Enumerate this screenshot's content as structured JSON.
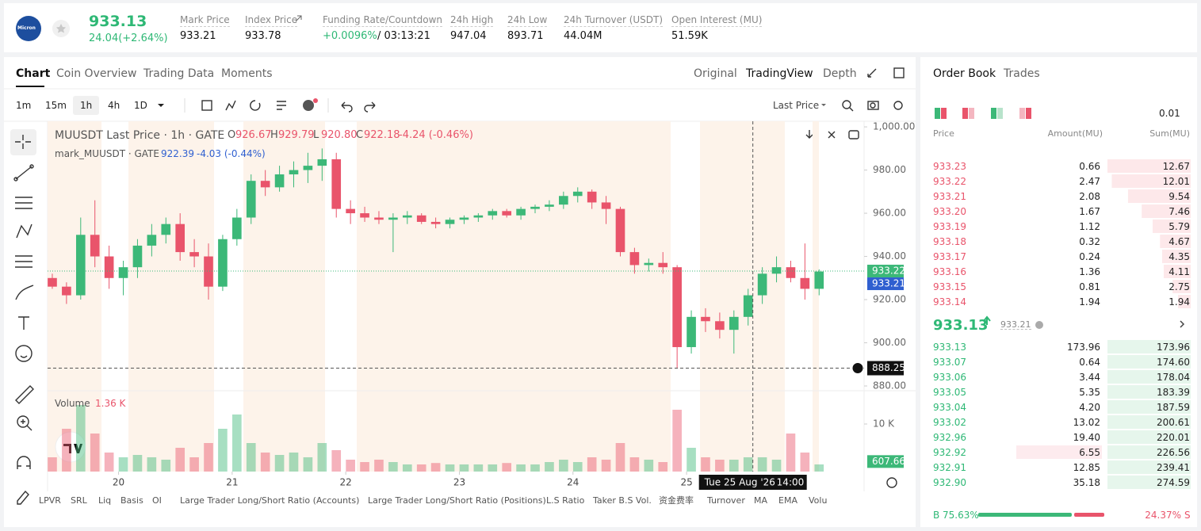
{
  "header": {
    "logo": "Micron",
    "last_price": "933.13",
    "change": "24.04(+2.64%)",
    "stats": [
      {
        "label": "Mark Price",
        "value": "933.21"
      },
      {
        "label": "Index Price",
        "value": "933.78"
      },
      {
        "label": "Funding Rate/Countdown",
        "value": "+0.0096%",
        "countdown": "/ 03:13:21"
      },
      {
        "label": "24h High",
        "value": "947.04"
      },
      {
        "label": "24h Low",
        "value": "893.71"
      },
      {
        "label": "24h Turnover (USDT)",
        "value": "44.04M"
      },
      {
        "label": "Open Interest (MU)",
        "value": "51.59K"
      }
    ]
  },
  "tabs": {
    "left": [
      "Chart",
      "Coin Overview",
      "Trading Data",
      "Moments"
    ],
    "right": [
      "Original",
      "TradingView",
      "Depth"
    ]
  },
  "toolbar": {
    "intervals": [
      "1m",
      "15m",
      "1h",
      "4h",
      "1D"
    ],
    "price_type": "Last Price"
  },
  "legend": {
    "symbol": "MUUSDT Last Price · 1h · GATE",
    "ohlc": [
      [
        "O",
        "926.67"
      ],
      [
        "H",
        "929.79"
      ],
      [
        "L",
        "920.80"
      ],
      [
        "C",
        "922.18"
      ]
    ],
    "change": "-4.24 (-0.46%)",
    "mark": "mark_MUUSDT · GATE",
    "mark_value": "922.39",
    "mark_change": "-4.03 (-0.44%)",
    "volume": "Volume",
    "volume_value": "1.36 K"
  },
  "chart_data": {
    "type": "candlestick",
    "x": [
      10,
      13,
      16,
      19,
      22,
      25,
      28,
      31,
      34,
      37,
      40,
      43,
      46,
      49,
      52,
      55,
      58,
      61,
      64,
      67,
      70,
      73,
      76,
      79,
      82,
      85,
      88,
      91,
      94,
      97,
      100,
      103,
      106,
      109,
      112,
      115,
      118,
      121,
      124,
      127,
      130,
      133,
      136,
      139,
      142,
      145,
      148,
      151,
      154,
      157,
      160,
      163,
      166,
      169,
      172
    ],
    "open": [
      930,
      926,
      922,
      950,
      940,
      930,
      935,
      945,
      950,
      955,
      942,
      940,
      926,
      948,
      958,
      975,
      972,
      978,
      980,
      982,
      985,
      962,
      960,
      958,
      957,
      958,
      959,
      956,
      955,
      957,
      958,
      959,
      961,
      959,
      962,
      963,
      964,
      968,
      970,
      965,
      962,
      942,
      936,
      937,
      935,
      898,
      912,
      910,
      906,
      912,
      922,
      932,
      935,
      930,
      925
    ],
    "high": [
      932,
      928,
      958,
      966,
      945,
      938,
      948,
      955,
      958,
      960,
      948,
      946,
      950,
      962,
      978,
      980,
      982,
      984,
      988,
      990,
      988,
      966,
      963,
      961,
      960,
      961,
      960,
      958,
      958,
      959,
      960,
      962,
      962,
      963,
      964,
      966,
      970,
      972,
      971,
      968,
      963,
      944,
      939,
      942,
      936,
      915,
      916,
      914,
      915,
      925,
      935,
      940,
      938,
      946,
      934
    ],
    "low": [
      925,
      918,
      920,
      935,
      925,
      922,
      930,
      940,
      946,
      938,
      935,
      920,
      924,
      945,
      955,
      968,
      970,
      972,
      974,
      975,
      958,
      955,
      956,
      955,
      942,
      955,
      955,
      953,
      953,
      955,
      956,
      957,
      958,
      957,
      960,
      961,
      962,
      965,
      962,
      955,
      940,
      932,
      933,
      932,
      888,
      895,
      905,
      902,
      895,
      908,
      918,
      928,
      928,
      920,
      922
    ],
    "close": [
      926,
      922,
      950,
      940,
      930,
      935,
      945,
      950,
      955,
      942,
      940,
      926,
      948,
      958,
      975,
      972,
      978,
      980,
      982,
      985,
      962,
      960,
      958,
      957,
      958,
      959,
      956,
      955,
      957,
      958,
      959,
      961,
      959,
      962,
      963,
      964,
      968,
      970,
      965,
      962,
      942,
      936,
      937,
      935,
      898,
      912,
      910,
      906,
      912,
      922,
      932,
      935,
      930,
      925,
      933
    ],
    "volume": [
      3000,
      9000,
      14000,
      8000,
      4000,
      3000,
      3500,
      3000,
      2500,
      5000,
      3000,
      6000,
      9000,
      12000,
      6000,
      4000,
      3500,
      4000,
      3000,
      6000,
      4500,
      2500,
      2000,
      2500,
      2000,
      1500,
      1500,
      1800,
      1500,
      1500,
      1500,
      1500,
      1800,
      1500,
      1500,
      2000,
      2500,
      2000,
      3000,
      2500,
      6000,
      3000,
      2500,
      2000,
      13000,
      5000,
      3000,
      2500,
      2500,
      3000,
      3000,
      2500,
      8000,
      4000,
      1500
    ],
    "xlim": [
      9,
      181.5
    ],
    "xticks": [
      {
        "value": 24,
        "label": "20"
      },
      {
        "value": 48,
        "label": "21"
      },
      {
        "value": 72,
        "label": "22"
      },
      {
        "value": 96,
        "label": "23"
      },
      {
        "value": 120,
        "label": "24"
      },
      {
        "value": 144,
        "label": "25"
      }
    ],
    "ylim": [
      877.8,
      1002.6
    ],
    "yticks": [
      {
        "value": 880,
        "label": "880.00"
      },
      {
        "value": 900,
        "label": "900.00"
      },
      {
        "value": 920,
        "label": "920.00"
      },
      {
        "value": 940,
        "label": "940.00"
      },
      {
        "value": 960,
        "label": "960.00"
      },
      {
        "value": 980,
        "label": "980.00"
      },
      {
        "value": 1000,
        "label": "1,000.00"
      }
    ],
    "volume_lim": [
      0,
      16667
    ],
    "volume_ticks": [
      {
        "value": 10000,
        "label": "10 K"
      }
    ],
    "last_price": 933.22,
    "mark_price": 933.21,
    "crosshair_price": 888.25,
    "crosshair_x": 158,
    "crosshair_x_label": "Tue 25 Aug '26",
    "crosshair_time": "14:00",
    "last_volume": 607.66,
    "up_color": "#3cb878",
    "down_color": "#e9546b"
  },
  "indicators": [
    "LPVR",
    "SRL",
    "Liq",
    "Basis",
    "OI",
    "Large Trader Long/Short Ratio (Accounts)",
    "Large Trader Long/Short Ratio (Positions)",
    "L.S Ratio",
    "Taker B.S Vol.",
    "资金费率",
    "Turnover",
    "MA",
    "EMA",
    "Volu"
  ],
  "order_book": {
    "tabs": [
      "Order Book",
      "Trades"
    ],
    "precision": "0.01",
    "columns": [
      "Price",
      "Amount(MU)",
      "Sum(MU)"
    ],
    "asks": [
      [
        "933.23",
        "0.66",
        "12.67"
      ],
      [
        "933.22",
        "2.47",
        "12.01"
      ],
      [
        "933.21",
        "2.08",
        "9.54"
      ],
      [
        "933.20",
        "1.67",
        "7.46"
      ],
      [
        "933.19",
        "1.12",
        "5.79"
      ],
      [
        "933.18",
        "0.32",
        "4.67"
      ],
      [
        "933.17",
        "0.24",
        "4.35"
      ],
      [
        "933.16",
        "1.36",
        "4.11"
      ],
      [
        "933.15",
        "0.81",
        "2.75"
      ],
      [
        "933.14",
        "1.94",
        "1.94"
      ]
    ],
    "mid_price": "933.13",
    "mid_mark": "933.21",
    "bids": [
      [
        "933.13",
        "173.96",
        "173.96"
      ],
      [
        "933.07",
        "0.64",
        "174.60"
      ],
      [
        "933.06",
        "3.44",
        "178.04"
      ],
      [
        "933.05",
        "5.35",
        "183.39"
      ],
      [
        "933.04",
        "4.20",
        "187.59"
      ],
      [
        "933.02",
        "13.02",
        "200.61"
      ],
      [
        "932.96",
        "19.40",
        "220.01"
      ],
      [
        "932.92",
        "6.55",
        "226.56"
      ],
      [
        "932.91",
        "12.85",
        "239.41"
      ],
      [
        "932.90",
        "35.18",
        "274.59"
      ]
    ],
    "buy_label": "B",
    "buy_pct": "75.63%",
    "sell_pct": "24.37%",
    "sell_label": "S"
  }
}
